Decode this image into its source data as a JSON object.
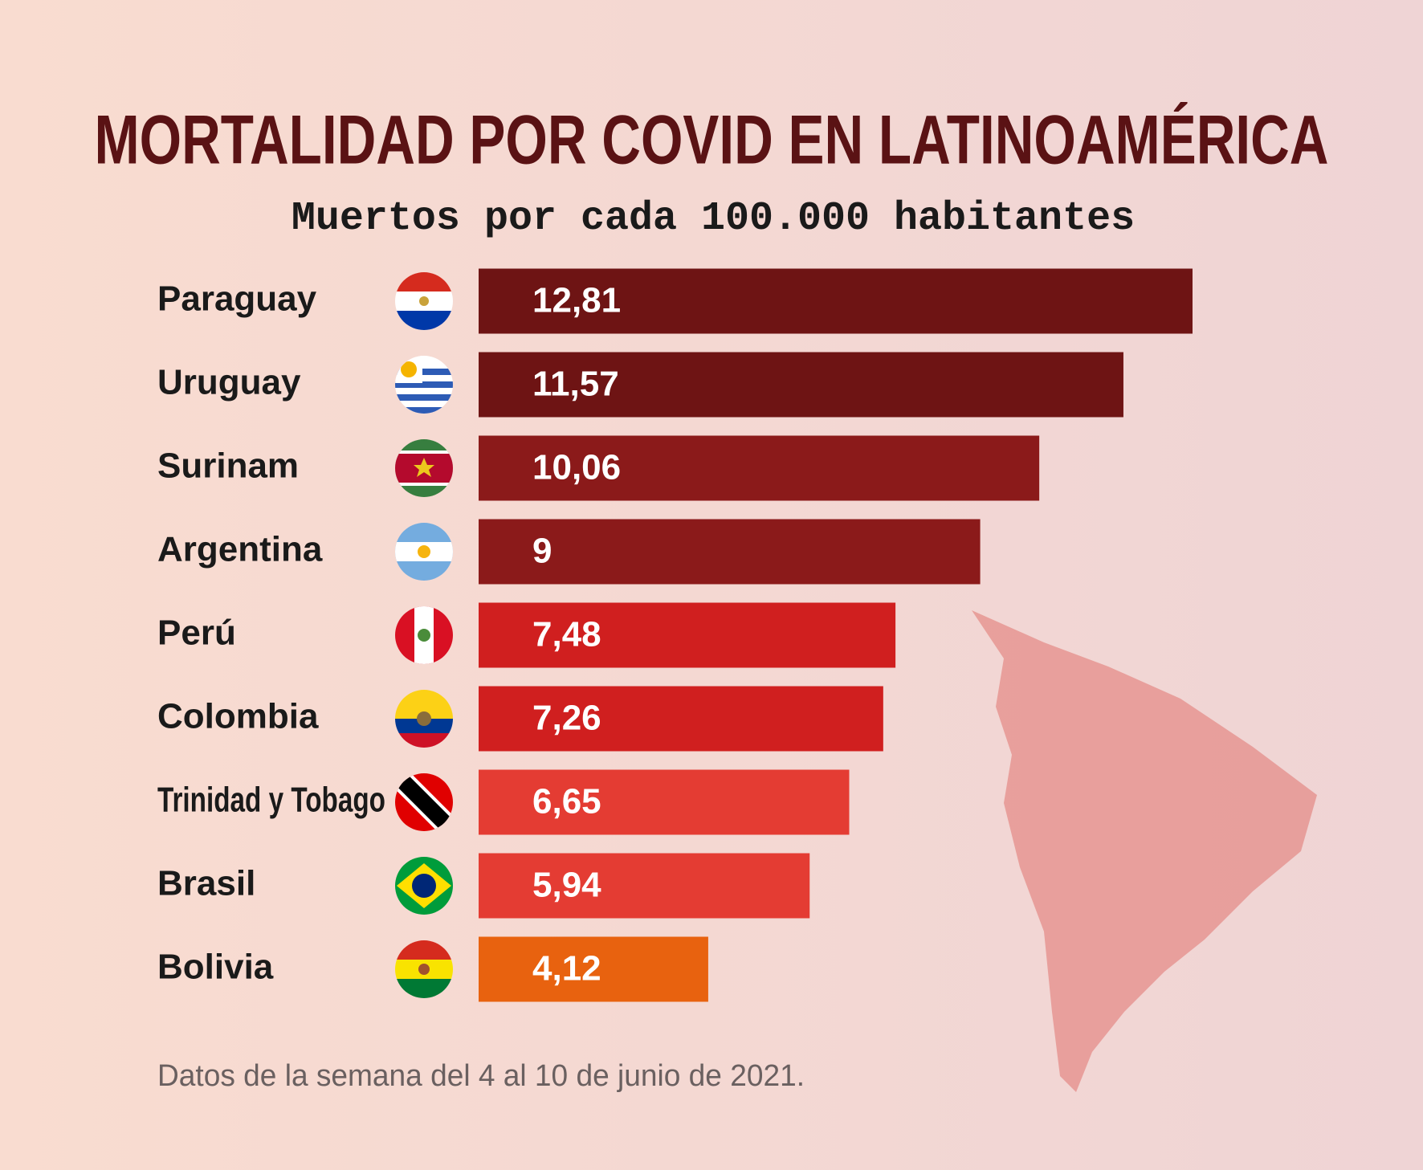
{
  "chart_data": {
    "type": "bar",
    "orientation": "horizontal",
    "title": "MORTALIDAD POR COVID EN LATINOAMÉRICA",
    "subtitle": "Muertos por cada 100.000 habitantes",
    "categories": [
      "Paraguay",
      "Uruguay",
      "Surinam",
      "Argentina",
      "Perú",
      "Colombia",
      "Trinidad y Tobago",
      "Brasil",
      "Bolivia"
    ],
    "values": [
      12.81,
      11.57,
      10.06,
      9,
      7.48,
      7.26,
      6.65,
      5.94,
      4.12
    ],
    "value_labels": [
      "12,81",
      "11,57",
      "10,06",
      "9",
      "7,48",
      "7,26",
      "6,65",
      "5,94",
      "4,12"
    ],
    "colors": [
      "#6e1414",
      "#6e1414",
      "#8b1a1a",
      "#8b1a1a",
      "#d01f1f",
      "#d01f1f",
      "#e43c33",
      "#e43c33",
      "#e8620f"
    ],
    "note": "Datos de la semana del 4 al 10 de junio de 2021."
  }
}
